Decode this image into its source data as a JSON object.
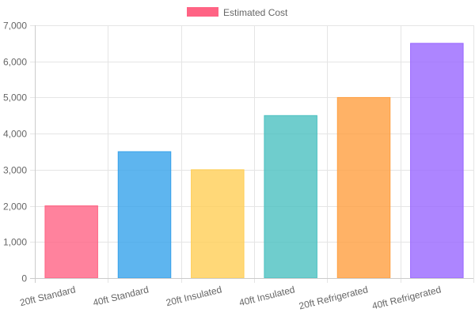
{
  "chart_data": {
    "type": "bar",
    "title": "",
    "xlabel": "",
    "ylabel": "",
    "categories": [
      "20ft Standard",
      "40ft Standard",
      "20ft Insulated",
      "40ft Insulated",
      "20ft Refrigerated",
      "40ft Refrigerated"
    ],
    "series": [
      {
        "name": "Estimated Cost",
        "values": [
          2000,
          3500,
          3000,
          4500,
          5000,
          6500
        ],
        "colors": [
          "#ff6384",
          "#36a2eb",
          "#ffce56",
          "#4bc0c0",
          "#ff9f40",
          "#9966ff"
        ]
      }
    ],
    "ylim": [
      0,
      7000
    ],
    "y_ticks": [
      "0",
      "1,000",
      "2,000",
      "3,000",
      "4,000",
      "5,000",
      "6,000",
      "7,000"
    ],
    "grid": true,
    "legend": {
      "position": "top-center",
      "swatch_color": "#ff6384"
    }
  }
}
